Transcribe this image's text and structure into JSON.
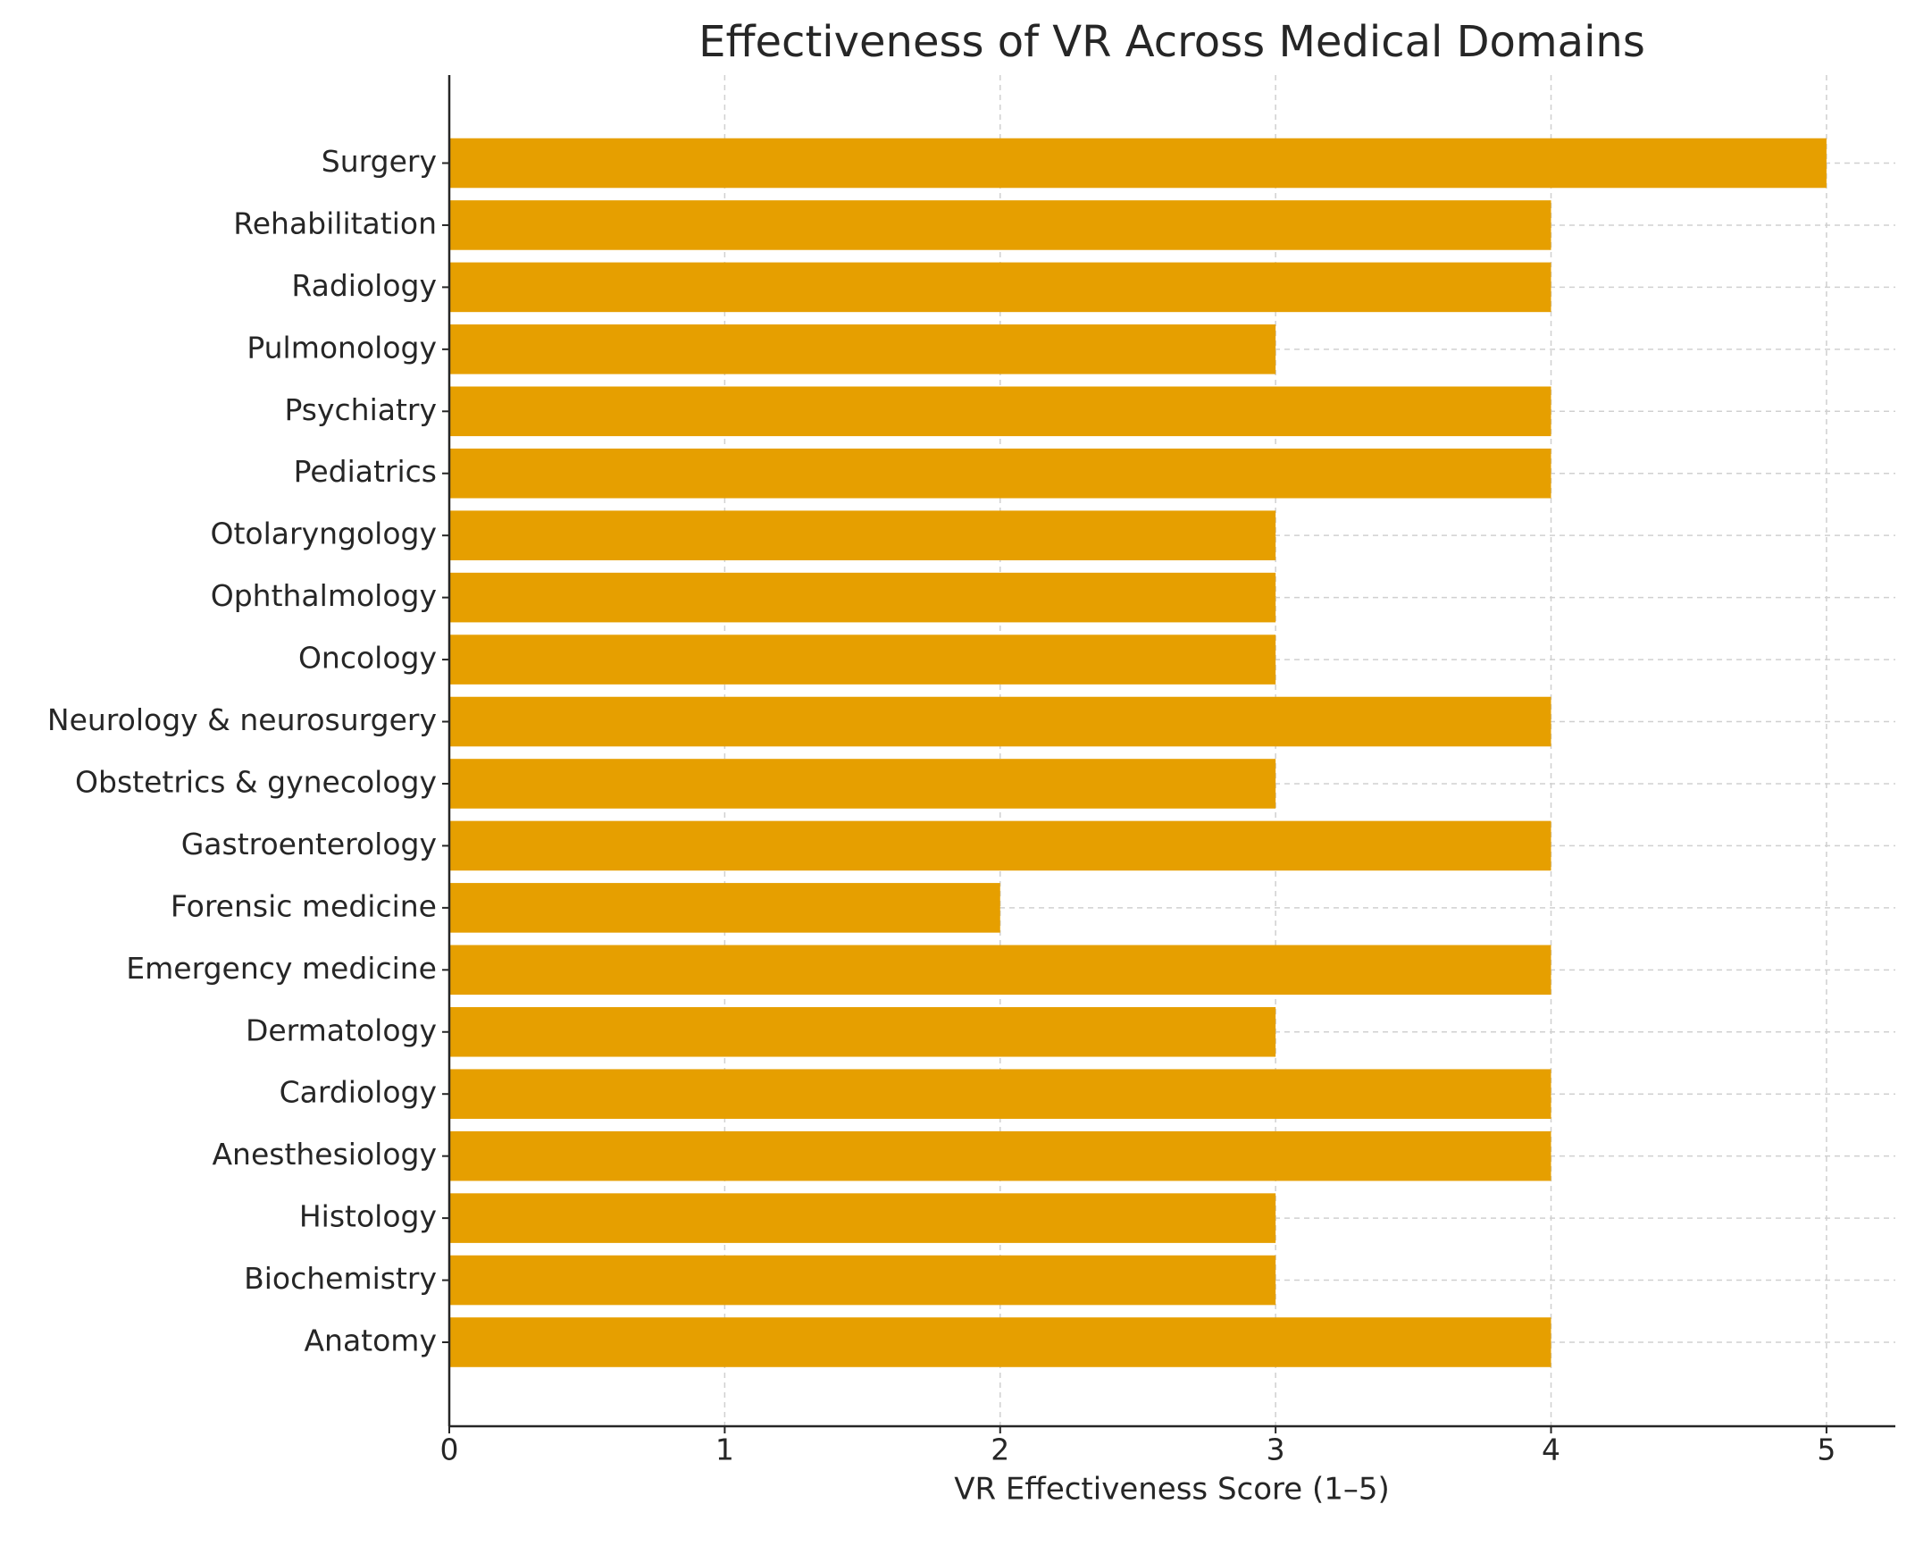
{
  "chart_data": {
    "type": "bar",
    "orientation": "horizontal",
    "title": "Effectiveness of VR Across Medical Domains",
    "xlabel": "VR Effectiveness Score (1–5)",
    "categories": [
      "Surgery",
      "Rehabilitation",
      "Radiology",
      "Pulmonology",
      "Psychiatry",
      "Pediatrics",
      "Otolaryngology",
      "Ophthalmology",
      "Oncology",
      "Neurology & neurosurgery",
      "Obstetrics & gynecology",
      "Gastroenterology",
      "Forensic medicine",
      "Emergency medicine",
      "Dermatology",
      "Cardiology",
      "Anesthesiology",
      "Histology",
      "Biochemistry",
      "Anatomy"
    ],
    "values": [
      5,
      4,
      4,
      3,
      4,
      4,
      3,
      3,
      3,
      4,
      3,
      4,
      2,
      4,
      3,
      4,
      4,
      3,
      3,
      4
    ],
    "color": "#e69f00",
    "xlim": [
      0,
      5.25
    ],
    "xticks": [
      0,
      1,
      2,
      3,
      4,
      5
    ],
    "grid": true
  }
}
